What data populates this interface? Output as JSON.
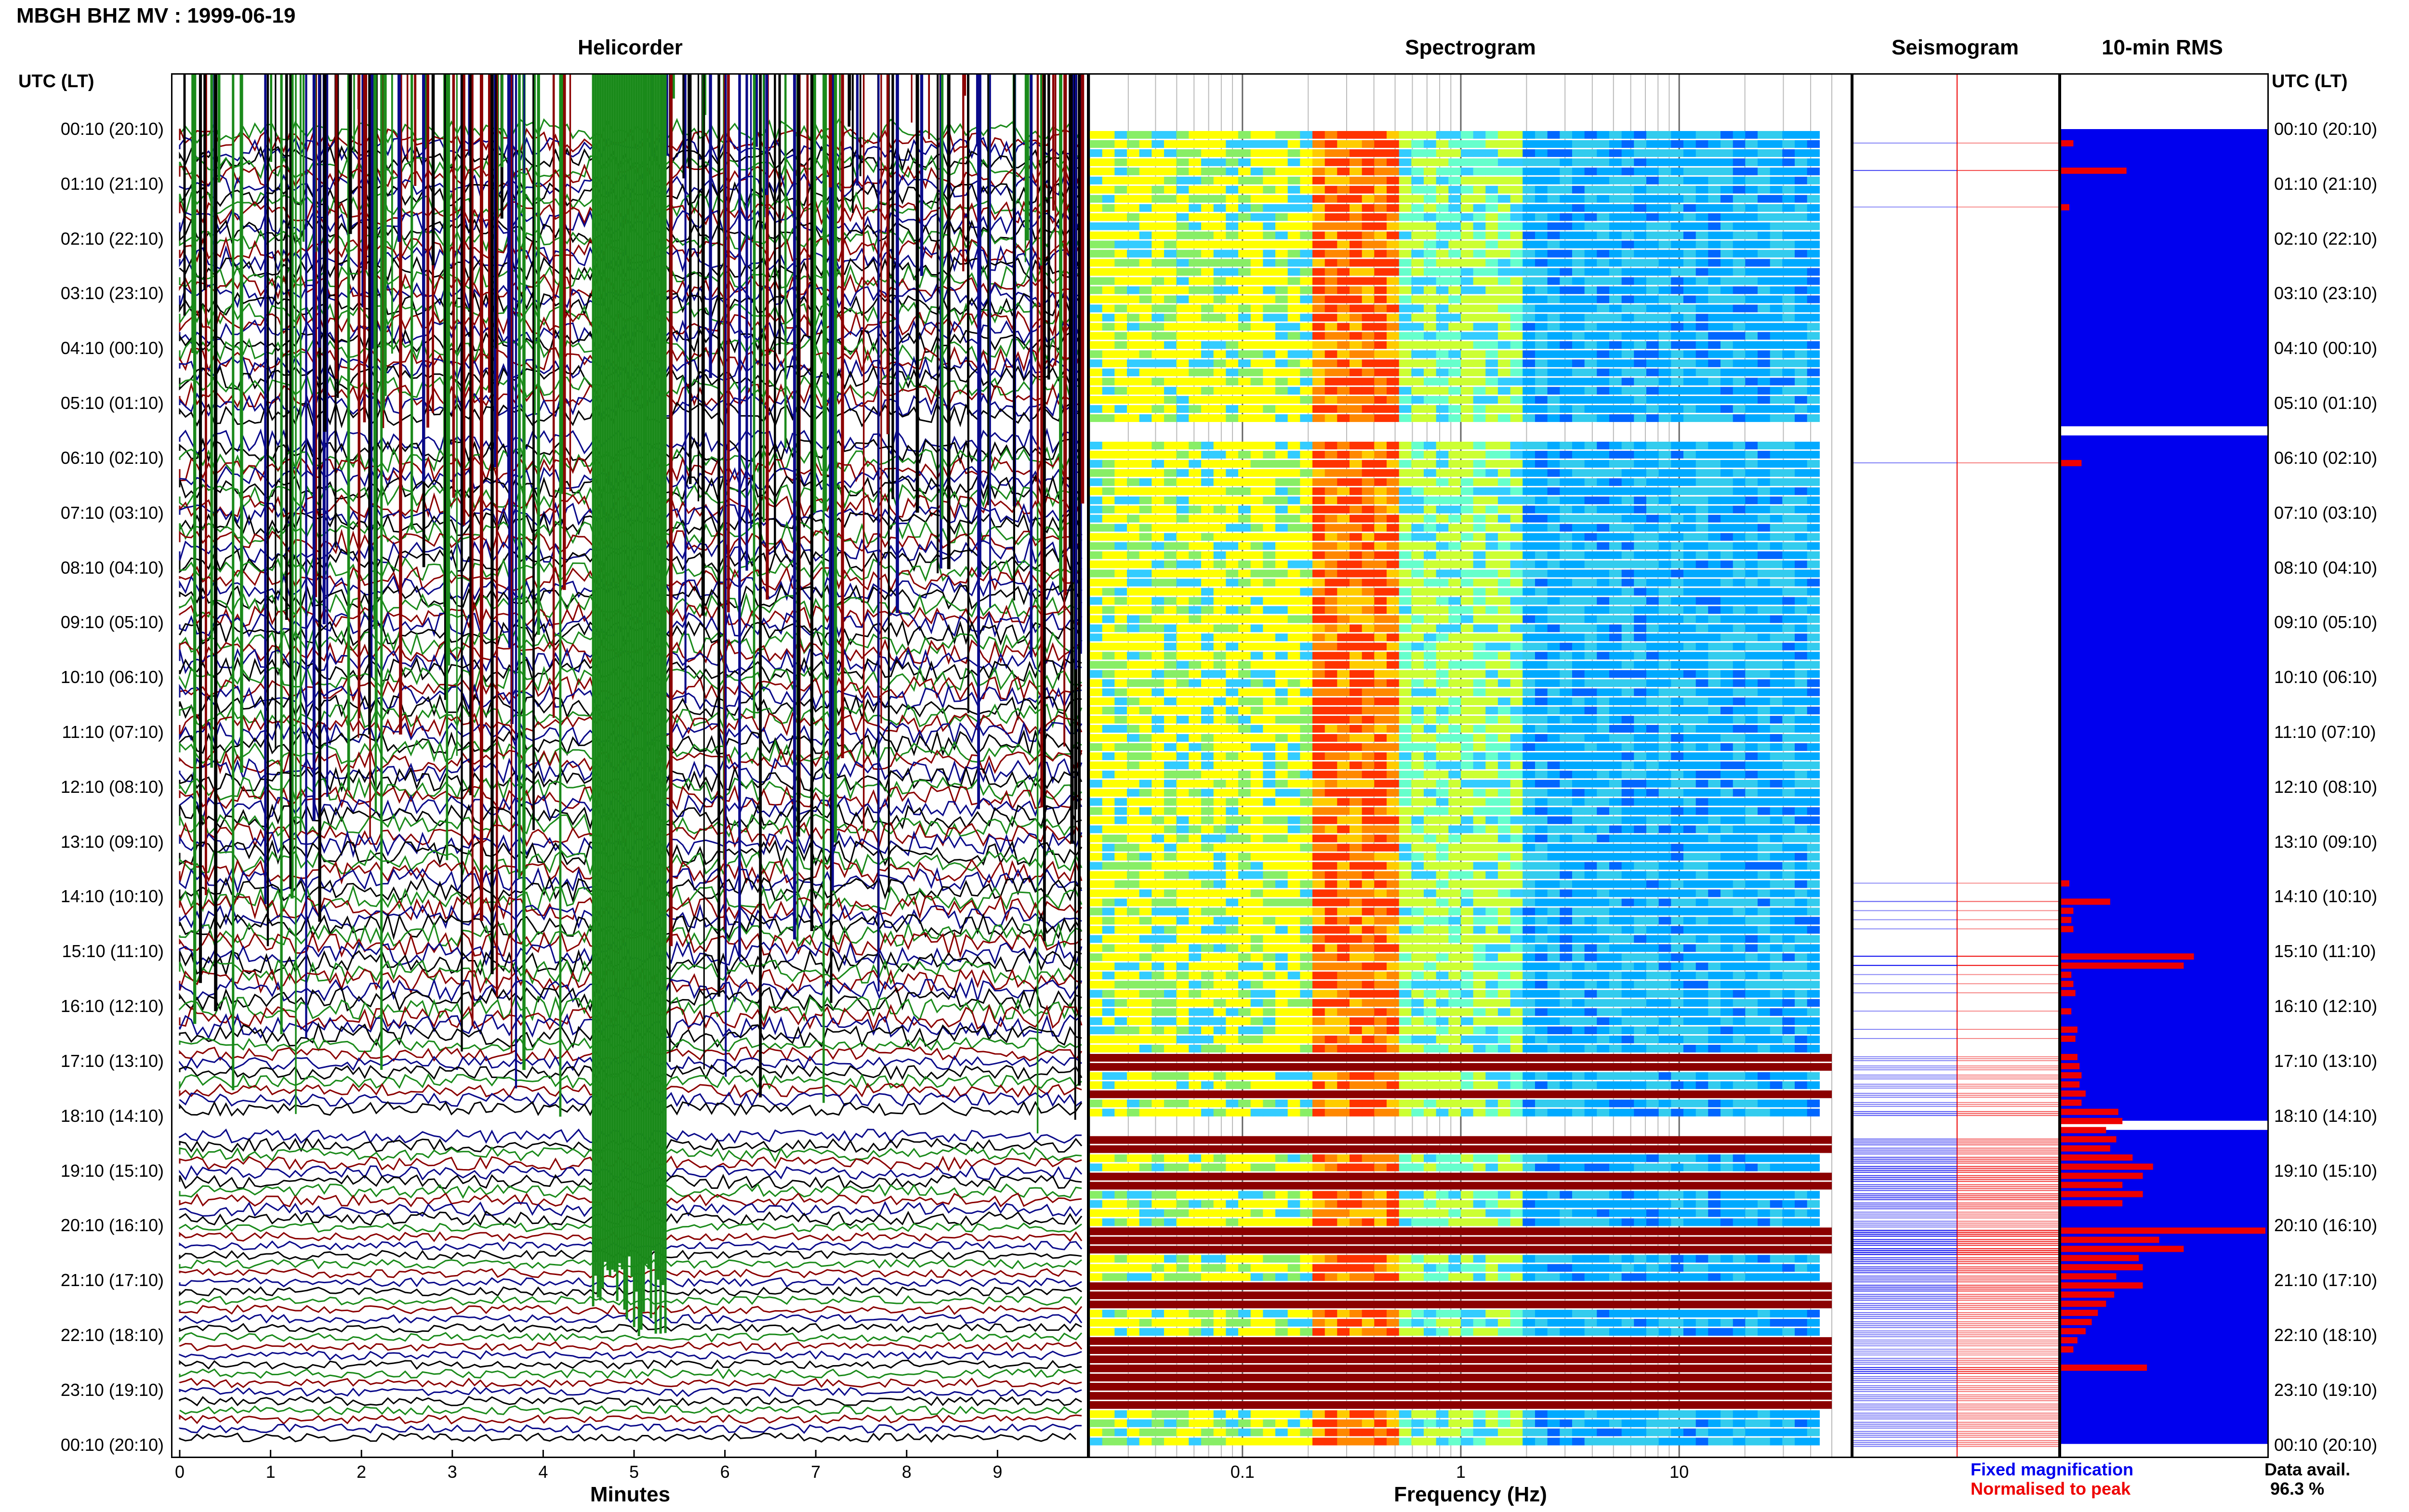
{
  "page_title": "MBGH BHZ MV : 1999-06-19",
  "panels": {
    "helicorder": "Helicorder",
    "spectrogram": "Spectrogram",
    "seismogram": "Seismogram",
    "rms": "10-min RMS"
  },
  "axis_header_left": "UTC (LT)",
  "axis_header_right": "UTC (LT)",
  "time_labels": [
    "00:10 (20:10)",
    "01:10 (21:10)",
    "02:10 (22:10)",
    "03:10 (23:10)",
    "04:10 (00:10)",
    "05:10 (01:10)",
    "06:10 (02:10)",
    "07:10 (03:10)",
    "08:10 (04:10)",
    "09:10 (05:10)",
    "10:10 (06:10)",
    "11:10 (07:10)",
    "12:10 (08:10)",
    "13:10 (09:10)",
    "14:10 (10:10)",
    "15:10 (11:10)",
    "16:10 (12:10)",
    "17:10 (13:10)",
    "18:10 (14:10)",
    "19:10 (15:10)",
    "20:10 (16:10)",
    "21:10 (17:10)",
    "22:10 (18:10)",
    "23:10 (19:10)",
    "00:10 (20:10)"
  ],
  "legend": {
    "fixed": "Fixed magnification",
    "normalised": "Normalised to peak",
    "avail_label": "Data avail.",
    "avail_value": "96.3 %"
  },
  "colors": {
    "heli_green": "#1a8a1a",
    "heli_red": "#8b0000",
    "heli_blue": "#0a0a8a",
    "heli_black": "#000000",
    "fixed_blue": "#0000ee",
    "normalised_red": "#ee0000",
    "spec_dark_red": "#8b0000"
  },
  "chart_data": [
    {
      "type": "line",
      "name": "helicorder",
      "title": "Helicorder",
      "xlabel": "Minutes",
      "x_ticks": [
        "0",
        "1",
        "2",
        "3",
        "4",
        "5",
        "6",
        "7",
        "8",
        "9"
      ],
      "xlim": [
        0,
        10
      ],
      "rows": 144,
      "gap_rows": [
        32,
        33,
        108,
        109
      ]
    },
    {
      "type": "heatmap",
      "name": "spectrogram",
      "title": "Spectrogram",
      "xlabel": "Frequency (Hz)",
      "x_ticks": [
        "0.1",
        "1",
        "10"
      ],
      "x_scale": "log",
      "xlim": [
        0.02,
        50
      ],
      "dominant_band_hz": [
        0.2,
        0.5
      ],
      "saturated_rows": [
        101,
        102,
        105,
        110,
        111,
        114,
        115,
        120,
        121,
        122,
        126,
        127,
        128,
        132,
        133,
        134,
        135,
        136,
        137,
        138,
        139
      ]
    },
    {
      "type": "bar",
      "name": "rms_10min",
      "title": "10-min RMS",
      "rows": 144,
      "highlight_rms": [
        {
          "row": 1,
          "value": 0.06
        },
        {
          "row": 4,
          "value": 0.32
        },
        {
          "row": 8,
          "value": 0.04
        },
        {
          "row": 36,
          "value": 0.1
        },
        {
          "row": 82,
          "value": 0.04
        },
        {
          "row": 84,
          "value": 0.24
        },
        {
          "row": 85,
          "value": 0.06
        },
        {
          "row": 86,
          "value": 0.05
        },
        {
          "row": 87,
          "value": 0.06
        },
        {
          "row": 90,
          "value": 0.65
        },
        {
          "row": 91,
          "value": 0.6
        },
        {
          "row": 92,
          "value": 0.05
        },
        {
          "row": 93,
          "value": 0.06
        },
        {
          "row": 94,
          "value": 0.07
        },
        {
          "row": 96,
          "value": 0.05
        },
        {
          "row": 98,
          "value": 0.08
        },
        {
          "row": 99,
          "value": 0.07
        },
        {
          "row": 101,
          "value": 0.08
        },
        {
          "row": 102,
          "value": 0.09
        },
        {
          "row": 103,
          "value": 0.1
        },
        {
          "row": 104,
          "value": 0.09
        },
        {
          "row": 105,
          "value": 0.12
        },
        {
          "row": 106,
          "value": 0.1
        },
        {
          "row": 107,
          "value": 0.28
        },
        {
          "row": 108,
          "value": 0.3
        },
        {
          "row": 109,
          "value": 0.22
        },
        {
          "row": 110,
          "value": 0.27
        },
        {
          "row": 111,
          "value": 0.24
        },
        {
          "row": 112,
          "value": 0.35
        },
        {
          "row": 113,
          "value": 0.45
        },
        {
          "row": 114,
          "value": 0.4
        },
        {
          "row": 115,
          "value": 0.3
        },
        {
          "row": 116,
          "value": 0.4
        },
        {
          "row": 117,
          "value": 0.3
        },
        {
          "row": 120,
          "value": 1.0
        },
        {
          "row": 121,
          "value": 0.48
        },
        {
          "row": 122,
          "value": 0.6
        },
        {
          "row": 123,
          "value": 0.38
        },
        {
          "row": 124,
          "value": 0.4
        },
        {
          "row": 125,
          "value": 0.27
        },
        {
          "row": 126,
          "value": 0.4
        },
        {
          "row": 127,
          "value": 0.26
        },
        {
          "row": 128,
          "value": 0.22
        },
        {
          "row": 129,
          "value": 0.18
        },
        {
          "row": 130,
          "value": 0.15
        },
        {
          "row": 131,
          "value": 0.12
        },
        {
          "row": 132,
          "value": 0.08
        },
        {
          "row": 133,
          "value": 0.06
        },
        {
          "row": 135,
          "value": 0.42
        }
      ]
    }
  ]
}
